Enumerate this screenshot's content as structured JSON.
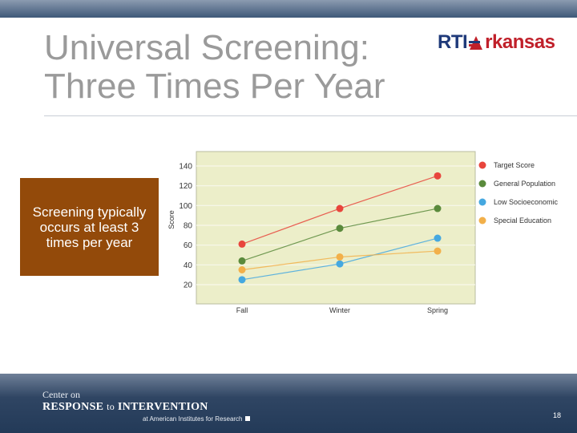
{
  "slide": {
    "title": "Universal Screening:\nThree Times Per Year",
    "callout_text": "Screening typically occurs at least 3 times per year",
    "page_number": "18"
  },
  "logo": {
    "rti": "RTI",
    "arkansas": "rkansas"
  },
  "footer": {
    "center_on": "Center on",
    "response_prefix": "RESPONSE",
    "response_to": "to",
    "response_suffix": "INTERVENTION",
    "air": "at American Institutes for Research"
  },
  "colors": {
    "plot_bg": "#eceec9",
    "callout_bg": "#934a0a"
  },
  "chart_data": {
    "type": "line",
    "categories": [
      "Fall",
      "Winter",
      "Spring"
    ],
    "ylabel": "Score",
    "xlabel": "",
    "title": "",
    "ylim": [
      20,
      140
    ],
    "yticks": [
      20,
      40,
      60,
      80,
      100,
      120,
      140
    ],
    "grid": true,
    "legend_position": "right",
    "series": [
      {
        "name": "Target Score",
        "color": "#e8453c",
        "values": [
          61,
          97,
          130
        ]
      },
      {
        "name": "General Population",
        "color": "#5a8a3c",
        "values": [
          44,
          77,
          97
        ]
      },
      {
        "name": "Low Socioeconomic",
        "color": "#45a8e0",
        "values": [
          25,
          41,
          67
        ]
      },
      {
        "name": "Special Education",
        "color": "#f2b04a",
        "values": [
          35,
          48,
          54
        ]
      }
    ]
  }
}
